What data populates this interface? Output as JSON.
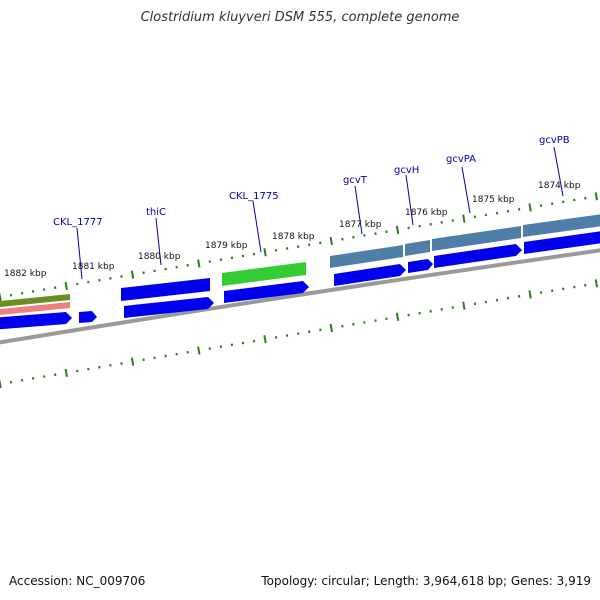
{
  "title": "Clostridium kluyveri DSM 555, complete genome",
  "footer": {
    "accession": "Accession: NC_009706",
    "summary": "Topology: circular; Length: 3,964,618 bp; Genes: 3,919"
  },
  "colors": {
    "cds": "#0000ee",
    "backbone": "#808080",
    "tick": "#2e7d1e",
    "label": "#0000aa",
    "green_feature": "#33cc33",
    "steel_feature": "#4f7fa8",
    "olive_feature": "#6b8e23",
    "pink_feature": "#f08080"
  },
  "kbp_labels": [
    "1882 kbp",
    "1881 kbp",
    "1880 kbp",
    "1879 kbp",
    "1878 kbp",
    "1877 kbp",
    "1876 kbp",
    "1875 kbp",
    "1874 kbp"
  ],
  "gene_labels": [
    "CKL_1777",
    "thiC",
    "CKL_1775",
    "gcvT",
    "gcvH",
    "gcvPA",
    "gcvPB"
  ]
}
